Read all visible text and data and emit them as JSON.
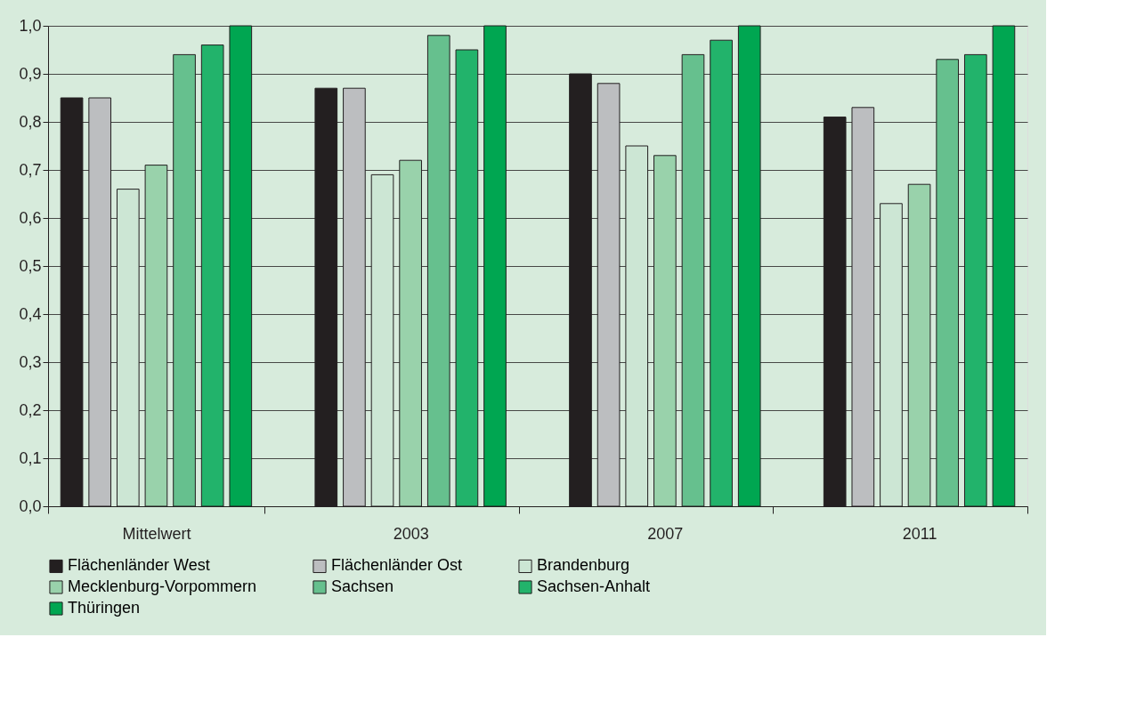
{
  "chart_data": {
    "type": "bar",
    "categories": [
      "Mittelwert",
      "2003",
      "2007",
      "2011"
    ],
    "series": [
      {
        "name": "Flächenländer West",
        "color": "#231f20",
        "values": [
          0.85,
          0.87,
          0.9,
          0.81
        ]
      },
      {
        "name": "Flächenländer Ost",
        "color": "#bcbec0",
        "values": [
          0.85,
          0.87,
          0.88,
          0.83
        ]
      },
      {
        "name": "Brandenburg",
        "color": "#cce6d4",
        "values": [
          0.66,
          0.69,
          0.75,
          0.63
        ]
      },
      {
        "name": "Mecklenburg-Vorpommern",
        "color": "#99d2ab",
        "values": [
          0.71,
          0.72,
          0.73,
          0.67
        ]
      },
      {
        "name": "Sachsen",
        "color": "#66c08e",
        "values": [
          0.94,
          0.98,
          0.94,
          0.93
        ]
      },
      {
        "name": "Sachsen-Anhalt",
        "color": "#22b36b",
        "values": [
          0.96,
          0.95,
          0.97,
          0.94
        ]
      },
      {
        "name": "Thüringen",
        "color": "#00a651",
        "values": [
          1.0,
          1.0,
          1.0,
          1.0
        ]
      }
    ],
    "ylim": [
      0,
      1
    ],
    "yticks": [
      {
        "value": 0,
        "label": "0,0"
      },
      {
        "value": 0.1,
        "label": "0,1"
      },
      {
        "value": 0.2,
        "label": "0,2"
      },
      {
        "value": 0.3,
        "label": "0,3"
      },
      {
        "value": 0.4,
        "label": "0,4"
      },
      {
        "value": 0.5,
        "label": "0,5"
      },
      {
        "value": 0.6,
        "label": "0,6"
      },
      {
        "value": 0.7,
        "label": "0,7"
      },
      {
        "value": 0.8,
        "label": "0,8"
      },
      {
        "value": 0.9,
        "label": "0,9"
      },
      {
        "value": 1.0,
        "label": "1,0"
      }
    ],
    "grid": "y",
    "legend": "bottom"
  }
}
